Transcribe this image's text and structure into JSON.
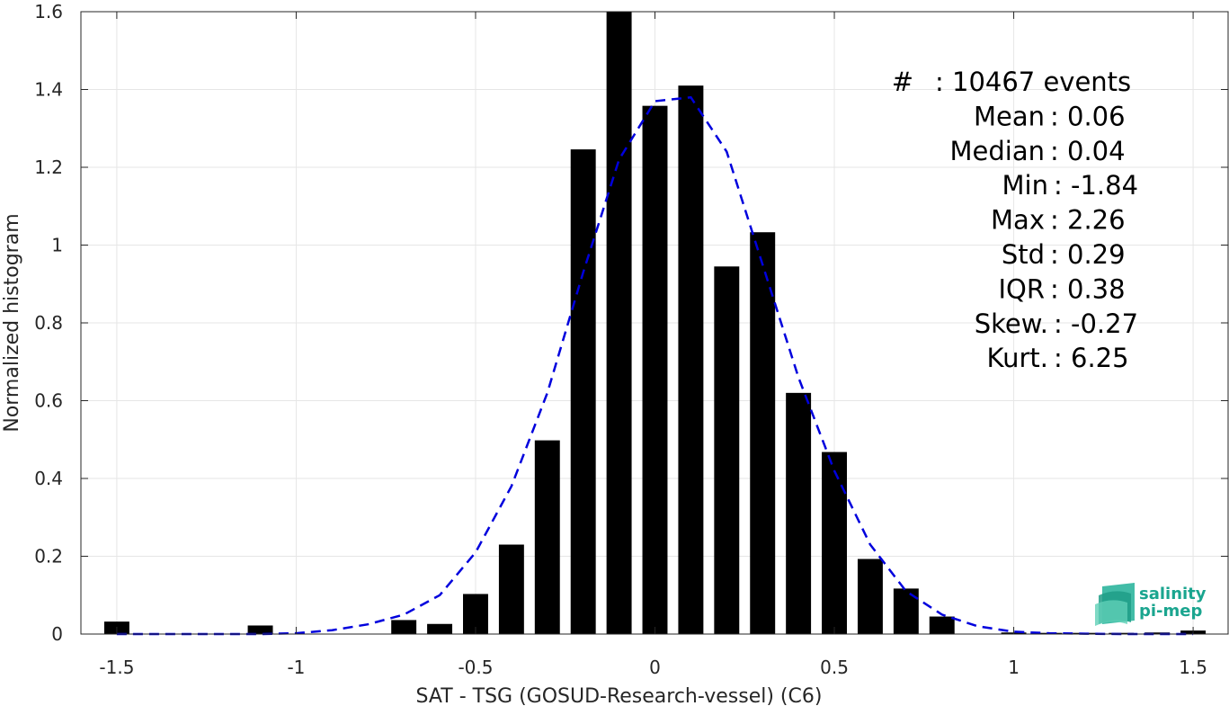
{
  "chart_data": {
    "type": "bar",
    "xlabel": "SAT - TSG (GOSUD-Research-vessel) (C6)",
    "ylabel": "Normalized histogram",
    "xlim": [
      -1.6,
      1.6
    ],
    "ylim": [
      0,
      1.6
    ],
    "grid": true,
    "x_ticks": [
      -1.5,
      -1,
      -0.5,
      0,
      0.5,
      1,
      1.5
    ],
    "x_tick_labels": [
      "-1.5",
      "-1",
      "-0.5",
      "0",
      "0.5",
      "1",
      "1.5"
    ],
    "y_ticks": [
      0,
      0.2,
      0.4,
      0.6,
      0.8,
      1,
      1.2,
      1.4,
      1.6
    ],
    "y_tick_labels": [
      "0",
      "0.2",
      "0.4",
      "0.6",
      "0.8",
      "1",
      "1.2",
      "1.4",
      "1.6"
    ],
    "bar_color": "#000000",
    "bar_width": 0.07,
    "bars": [
      {
        "x": -1.5,
        "y": 0.032
      },
      {
        "x": -1.1,
        "y": 0.022
      },
      {
        "x": -0.7,
        "y": 0.036
      },
      {
        "x": -0.6,
        "y": 0.026
      },
      {
        "x": -0.5,
        "y": 0.103
      },
      {
        "x": -0.4,
        "y": 0.23
      },
      {
        "x": -0.3,
        "y": 0.498
      },
      {
        "x": -0.2,
        "y": 1.246
      },
      {
        "x": -0.1,
        "y": 1.6
      },
      {
        "x": 0.0,
        "y": 1.358
      },
      {
        "x": 0.1,
        "y": 1.41
      },
      {
        "x": 0.2,
        "y": 0.945
      },
      {
        "x": 0.3,
        "y": 1.033
      },
      {
        "x": 0.4,
        "y": 0.62
      },
      {
        "x": 0.5,
        "y": 0.468
      },
      {
        "x": 0.6,
        "y": 0.193
      },
      {
        "x": 0.7,
        "y": 0.117
      },
      {
        "x": 0.8,
        "y": 0.045
      },
      {
        "x": 1.0,
        "y": 0.004
      },
      {
        "x": 1.1,
        "y": 0.003
      },
      {
        "x": 1.2,
        "y": 0.003
      },
      {
        "x": 1.3,
        "y": 0.003
      },
      {
        "x": 1.4,
        "y": 0.004
      },
      {
        "x": 1.5,
        "y": 0.009
      }
    ],
    "fit_curve": {
      "color": "#0000dd",
      "style": "dashed",
      "x": [
        -1.5,
        -1.4,
        -1.3,
        -1.2,
        -1.1,
        -1.0,
        -0.9,
        -0.8,
        -0.7,
        -0.6,
        -0.5,
        -0.4,
        -0.3,
        -0.2,
        -0.1,
        0.0,
        0.1,
        0.2,
        0.3,
        0.4,
        0.5,
        0.6,
        0.7,
        0.8,
        0.9,
        1.0,
        1.1,
        1.2,
        1.3,
        1.4,
        1.5
      ],
      "y": [
        0.0,
        0.0,
        0.0,
        0.0,
        0.0,
        0.002,
        0.01,
        0.025,
        0.05,
        0.1,
        0.21,
        0.38,
        0.62,
        0.93,
        1.22,
        1.37,
        1.38,
        1.24,
        0.95,
        0.66,
        0.42,
        0.23,
        0.11,
        0.05,
        0.02,
        0.006,
        0.002,
        0.001,
        0.0,
        0.0,
        0.0
      ]
    },
    "stats": [
      {
        "label": "#",
        "value": ": 10467 events"
      },
      {
        "label": "Mean",
        "value": ": 0.06"
      },
      {
        "label": "Median",
        "value": ": 0.04"
      },
      {
        "label": "Min",
        "value": ": -1.84"
      },
      {
        "label": "Max",
        "value": ": 2.26"
      },
      {
        "label": "Std",
        "value": ": 0.29"
      },
      {
        "label": "IQR",
        "value": ": 0.38"
      },
      {
        "label": "Skew.",
        "value": ": -0.27"
      },
      {
        "label": "Kurt.",
        "value": ": 6.25"
      }
    ]
  },
  "logo": {
    "line1": "salinity",
    "line2": "pi-mep",
    "color": "#1aa58f"
  }
}
